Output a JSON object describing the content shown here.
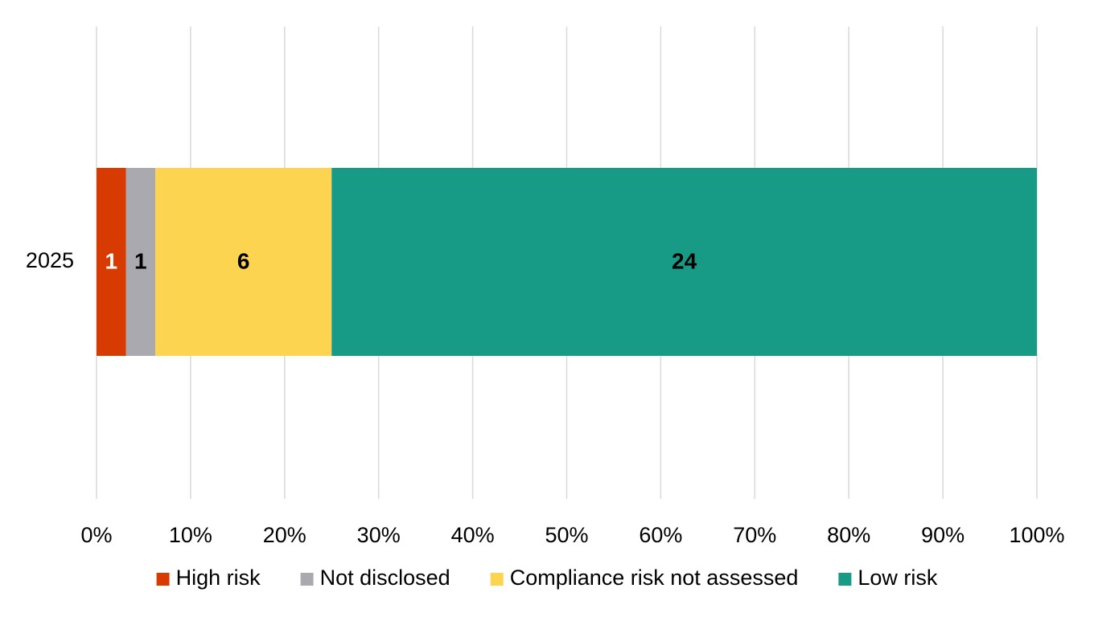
{
  "chart_data": {
    "type": "bar",
    "orientation": "horizontal",
    "stacked": "percent",
    "categories": [
      "2025"
    ],
    "series": [
      {
        "name": "High risk",
        "values": [
          1
        ],
        "color": "#D83B01"
      },
      {
        "name": "Not disclosed",
        "values": [
          1
        ],
        "color": "#ABA9B0"
      },
      {
        "name": "Compliance risk not assessed",
        "values": [
          6
        ],
        "color": "#FDD44F"
      },
      {
        "name": "Low risk",
        "values": [
          24
        ],
        "color": "#189B86"
      }
    ],
    "data_label_colors": [
      "#FFFFFF",
      "#000000",
      "#000000",
      "#000000"
    ],
    "x_ticks": [
      "0%",
      "10%",
      "20%",
      "30%",
      "40%",
      "50%",
      "60%",
      "70%",
      "80%",
      "90%",
      "100%"
    ],
    "xlim": [
      0,
      100
    ],
    "grid": true,
    "gridline_color": "#D9D9D9",
    "legend_position": "bottom",
    "title": "",
    "xlabel": "",
    "ylabel": ""
  }
}
